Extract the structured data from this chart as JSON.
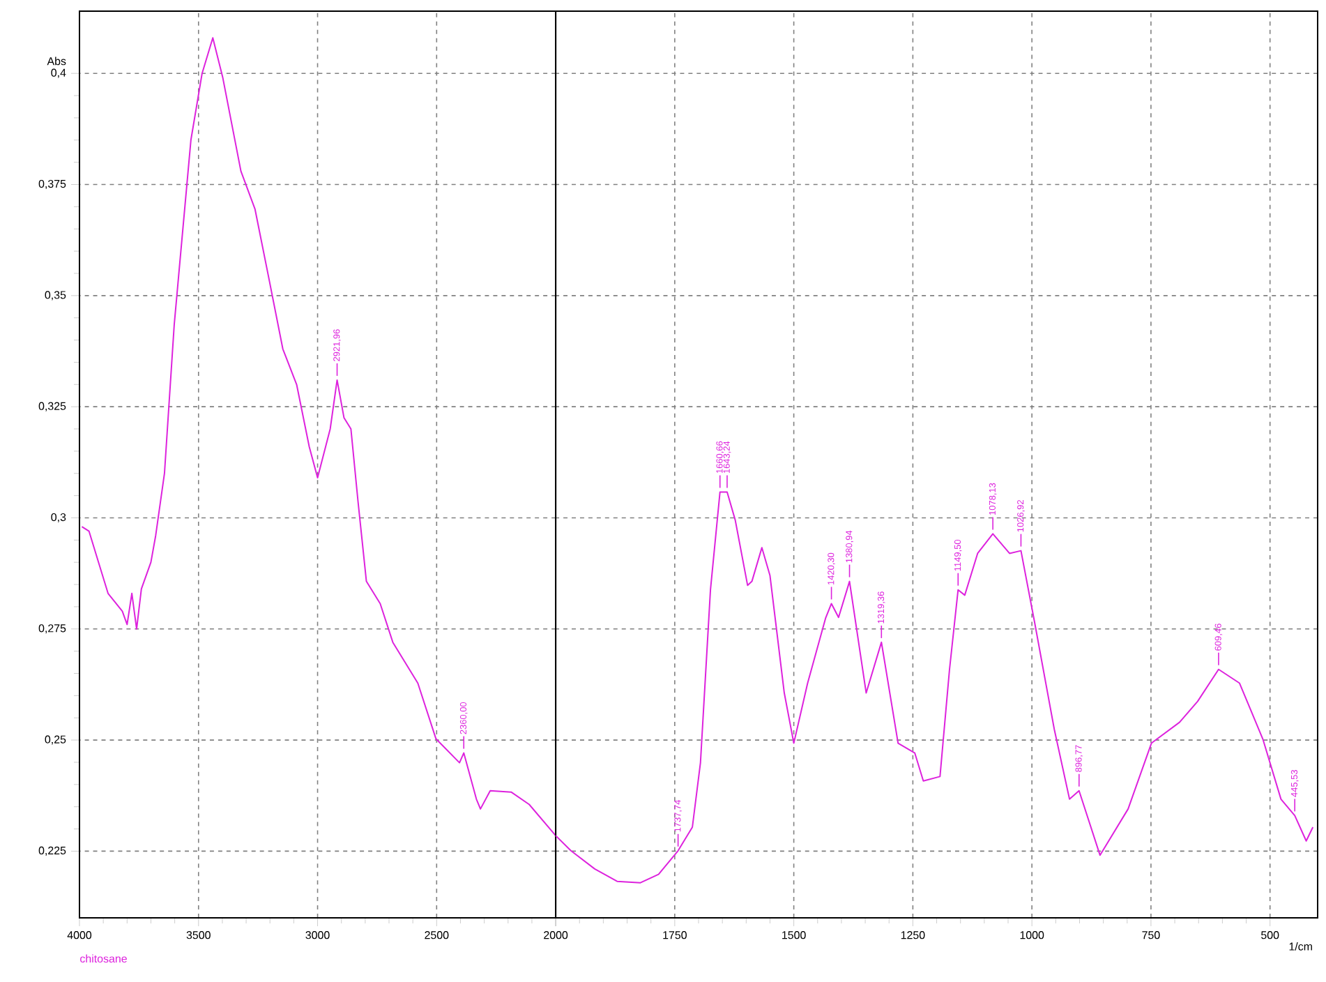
{
  "chart_data": [
    {
      "type": "line",
      "ylabel": "Abs",
      "x": [
        3990,
        3960,
        3920,
        3880,
        3850,
        3820,
        3800,
        3780,
        3760,
        3740,
        3720,
        3700,
        3680,
        3643,
        3602,
        3532,
        3485,
        3440,
        3398,
        3322,
        3263,
        3205,
        3146,
        3088,
        3035,
        3000,
        2947,
        2918,
        2889,
        2860,
        2830,
        2795,
        2737,
        2684,
        2579,
        2503,
        2404,
        2386,
        2333,
        2316,
        2275,
        2187,
        2111,
        2000
      ],
      "series": [
        {
          "name": "chitosane",
          "color": "#dd22dd",
          "values": [
            0.298,
            0.297,
            0.29,
            0.283,
            0.281,
            0.279,
            0.276,
            0.283,
            0.275,
            0.284,
            0.287,
            0.29,
            0.296,
            0.31,
            0.3435,
            0.385,
            0.4,
            0.408,
            0.399,
            0.378,
            0.3695,
            0.354,
            0.338,
            0.33,
            0.316,
            0.309,
            0.32,
            0.331,
            0.3225,
            0.32,
            0.3036,
            0.2857,
            0.2807,
            0.272,
            0.2628,
            0.2503,
            0.2449,
            0.2471,
            0.2367,
            0.2345,
            0.2386,
            0.2383,
            0.2355,
            0.2285
          ]
        }
      ],
      "xlim": [
        4000,
        2000
      ],
      "ylim": [
        0.21,
        0.414
      ],
      "xticks": [
        4000,
        3500,
        3000,
        2500,
        2000
      ],
      "yticks": [
        {
          "value": 0.225,
          "label": "0,225"
        },
        {
          "value": 0.25,
          "label": "0,25"
        },
        {
          "value": 0.275,
          "label": "0,275"
        },
        {
          "value": 0.3,
          "label": "0,3"
        },
        {
          "value": 0.325,
          "label": "0,325"
        },
        {
          "value": 0.35,
          "label": "0,35"
        },
        {
          "value": 0.375,
          "label": "0,375"
        },
        {
          "value": 0.4,
          "label": "0,4"
        }
      ],
      "grid": true,
      "legend": "bottom left",
      "annotations": [
        {
          "text": "2921,96",
          "x": 2918,
          "y": 0.331
        },
        {
          "text": "2360,00",
          "x": 2386,
          "y": 0.2471
        }
      ]
    },
    {
      "type": "line",
      "xlabel": "1/cm",
      "x": [
        2000,
        1968,
        1918,
        1871,
        1822,
        1784,
        1743,
        1713,
        1696,
        1675,
        1655,
        1640,
        1623,
        1597,
        1588,
        1567,
        1550,
        1520,
        1500,
        1471,
        1433,
        1421,
        1406,
        1383,
        1348,
        1316,
        1281,
        1246,
        1228,
        1193,
        1173,
        1155,
        1141,
        1114,
        1082,
        1047,
        1023,
        994,
        953,
        921,
        901,
        857,
        798,
        749,
        690,
        652,
        608,
        564,
        515,
        477,
        448,
        424,
        410
      ],
      "series": [
        {
          "color": "#dd22dd",
          "values": [
            0.2285,
            0.2251,
            0.221,
            0.2182,
            0.2179,
            0.2198,
            0.2251,
            0.2304,
            0.2449,
            0.2838,
            0.3058,
            0.3058,
            0.2995,
            0.2848,
            0.2857,
            0.2933,
            0.287,
            0.2606,
            0.2493,
            0.2628,
            0.2775,
            0.2807,
            0.2776,
            0.2857,
            0.2606,
            0.272,
            0.2493,
            0.2471,
            0.2408,
            0.2418,
            0.2659,
            0.2838,
            0.2826,
            0.292,
            0.2964,
            0.292,
            0.2926,
            0.2763,
            0.2524,
            0.2367,
            0.2386,
            0.2241,
            0.2345,
            0.2493,
            0.254,
            0.2587,
            0.2659,
            0.2628,
            0.2502,
            0.2367,
            0.233,
            0.2273,
            0.2304
          ]
        }
      ],
      "xlim": [
        2000,
        400
      ],
      "ylim": [
        0.21,
        0.414
      ],
      "xticks": [
        {
          "value": 2000,
          "label": null
        },
        1750,
        1500,
        1250,
        1000,
        750,
        500
      ],
      "yticks": [
        0.225,
        0.25,
        0.275,
        0.3,
        0.325,
        0.35,
        0.375,
        0.4
      ],
      "tick_labels": "x",
      "grid": true,
      "annotations": [
        {
          "text": "1737,74",
          "x": 1743,
          "y": 0.2251
        },
        {
          "text": "1660,66",
          "x": 1655,
          "y": 0.3058
        },
        {
          "text": "1643,24",
          "x": 1640,
          "y": 0.3058
        },
        {
          "text": "1420,30",
          "x": 1421,
          "y": 0.2807
        },
        {
          "text": "1380,94",
          "x": 1383,
          "y": 0.2857
        },
        {
          "text": "1319,36",
          "x": 1316,
          "y": 0.272
        },
        {
          "text": "1149,50",
          "x": 1155,
          "y": 0.2838
        },
        {
          "text": "1078,13",
          "x": 1082,
          "y": 0.2964
        },
        {
          "text": "1026,92",
          "x": 1023,
          "y": 0.2926
        },
        {
          "text": "896,77",
          "x": 901,
          "y": 0.2386
        },
        {
          "text": "609,46",
          "x": 608,
          "y": 0.2659
        },
        {
          "text": "445,53",
          "x": 448,
          "y": 0.233
        }
      ]
    }
  ]
}
